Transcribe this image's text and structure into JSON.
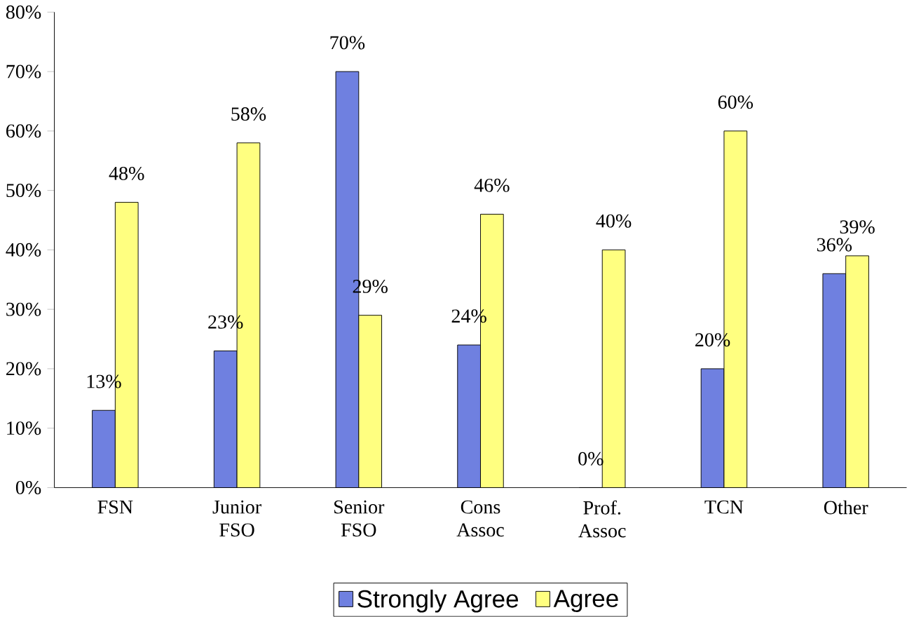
{
  "chart_data": {
    "type": "bar",
    "categories": [
      "FSN",
      "Junior FSO",
      "Senior FSO",
      "Cons Assoc",
      "Prof. Assoc",
      "TCN",
      "Other"
    ],
    "series": [
      {
        "name": "Strongly Agree",
        "color": "#6f80e0",
        "values": [
          13,
          23,
          70,
          24,
          0,
          20,
          36
        ],
        "value_labels": [
          "13%",
          "23%",
          "70%",
          "24%",
          "0%",
          "20%",
          "36%"
        ]
      },
      {
        "name": "Agree",
        "color": "#ffff80",
        "values": [
          48,
          58,
          29,
          46,
          40,
          60,
          39
        ],
        "value_labels": [
          "48%",
          "58%",
          "29%",
          "46%",
          "40%",
          "60%",
          "39%"
        ]
      }
    ],
    "ylim": [
      0,
      80
    ],
    "yticks": [
      {
        "value": 0,
        "label": "0%"
      },
      {
        "value": 10,
        "label": "10%"
      },
      {
        "value": 20,
        "label": "20%"
      },
      {
        "value": 30,
        "label": "30%"
      },
      {
        "value": 40,
        "label": "40%"
      },
      {
        "value": 50,
        "label": "50%"
      },
      {
        "value": 60,
        "label": "60%"
      },
      {
        "value": 70,
        "label": "70%"
      },
      {
        "value": 80,
        "label": "80%"
      }
    ],
    "grid": false,
    "legend": "bottom"
  }
}
